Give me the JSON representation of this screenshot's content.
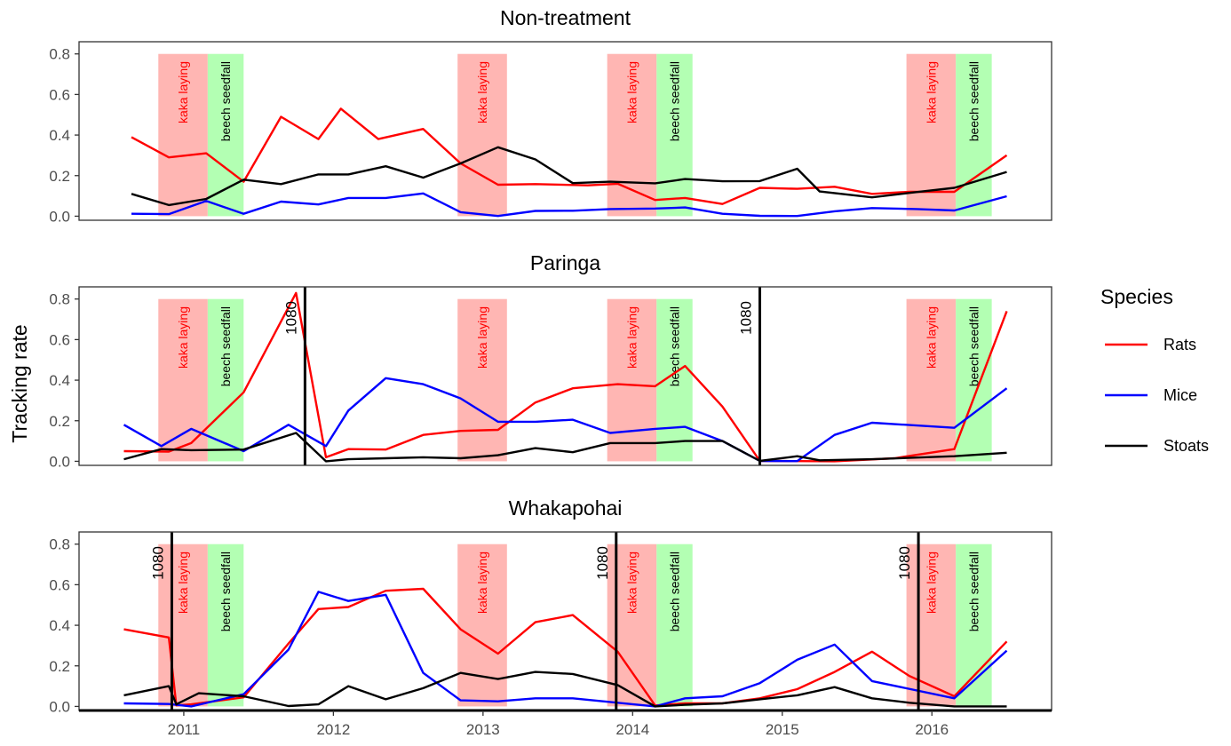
{
  "chart_data": {
    "type": "line",
    "ylabel": "Tracking rate",
    "x_ticks": [
      2011,
      2012,
      2013,
      2014,
      2015,
      2016
    ],
    "xlim": [
      2010.3,
      2016.8
    ],
    "ylim": [
      -0.02,
      0.86
    ],
    "y_ticks": [
      "0.0",
      "0.2",
      "0.4",
      "0.6",
      "0.8"
    ],
    "grid": false,
    "legend": {
      "title": "Species",
      "position": "right",
      "entries": [
        {
          "name": "Rats",
          "color": "#ff0000"
        },
        {
          "name": "Mice",
          "color": "#0000ff"
        },
        {
          "name": "Stoats",
          "color": "#000000"
        }
      ]
    },
    "colors": {
      "Rats": "#ff0000",
      "Mice": "#0000ff",
      "Stoats": "#000000",
      "kaka_band": "#ffb6b3",
      "beech_band": "#b3ffb3",
      "kaka_text": "#ff0000",
      "beech_text": "#000000"
    },
    "band_labels": {
      "kaka": "kaka laying",
      "beech": "beech seedfall"
    },
    "event_label": "1080",
    "panels": [
      {
        "title": "Non-treatment",
        "bands": [
          {
            "type": "kaka",
            "start": 2010.83,
            "end": 2011.16
          },
          {
            "type": "beech",
            "start": 2011.16,
            "end": 2011.4
          },
          {
            "type": "kaka",
            "start": 2012.83,
            "end": 2013.16
          },
          {
            "type": "kaka",
            "start": 2013.83,
            "end": 2014.16
          },
          {
            "type": "beech",
            "start": 2014.16,
            "end": 2014.4
          },
          {
            "type": "kaka",
            "start": 2015.83,
            "end": 2016.16
          },
          {
            "type": "beech",
            "start": 2016.16,
            "end": 2016.4
          }
        ],
        "events": [],
        "series": [
          {
            "name": "Rats",
            "x": [
              2010.65,
              2010.9,
              2011.15,
              2011.4,
              2011.65,
              2011.9,
              2012.05,
              2012.3,
              2012.6,
              2012.85,
              2013.1,
              2013.35,
              2013.7,
              2013.9,
              2014.15,
              2014.35,
              2014.6,
              2014.85,
              2015.1,
              2015.35,
              2015.6,
              2015.85,
              2016.15,
              2016.5
            ],
            "values": [
              0.39,
              0.29,
              0.31,
              0.17,
              0.49,
              0.38,
              0.53,
              0.38,
              0.43,
              0.26,
              0.155,
              0.158,
              0.152,
              0.16,
              0.08,
              0.09,
              0.06,
              0.14,
              0.135,
              0.145,
              0.11,
              0.12,
              0.12,
              0.3
            ]
          },
          {
            "name": "Mice",
            "x": [
              2010.65,
              2010.9,
              2011.15,
              2011.4,
              2011.65,
              2011.9,
              2012.1,
              2012.35,
              2012.6,
              2012.85,
              2013.1,
              2013.35,
              2013.6,
              2013.85,
              2014.15,
              2014.35,
              2014.6,
              2014.85,
              2015.1,
              2015.35,
              2015.6,
              2015.9,
              2016.15,
              2016.5
            ],
            "values": [
              0.012,
              0.01,
              0.075,
              0.012,
              0.072,
              0.058,
              0.09,
              0.09,
              0.112,
              0.02,
              0.001,
              0.026,
              0.027,
              0.035,
              0.038,
              0.043,
              0.012,
              0.002,
              0.001,
              0.024,
              0.04,
              0.035,
              0.028,
              0.098
            ]
          },
          {
            "name": "Stoats",
            "x": [
              2010.65,
              2010.9,
              2011.15,
              2011.4,
              2011.65,
              2011.9,
              2012.1,
              2012.35,
              2012.6,
              2012.85,
              2013.1,
              2013.35,
              2013.6,
              2013.85,
              2014.15,
              2014.35,
              2014.6,
              2014.85,
              2015.1,
              2015.25,
              2015.6,
              2015.85,
              2016.15,
              2016.5
            ],
            "values": [
              0.11,
              0.055,
              0.085,
              0.18,
              0.158,
              0.206,
              0.206,
              0.246,
              0.19,
              0.26,
              0.34,
              0.28,
              0.163,
              0.17,
              0.162,
              0.183,
              0.172,
              0.173,
              0.234,
              0.122,
              0.093,
              0.115,
              0.14,
              0.218
            ]
          }
        ]
      },
      {
        "title": "Paringa",
        "bands": [
          {
            "type": "kaka",
            "start": 2010.83,
            "end": 2011.16
          },
          {
            "type": "beech",
            "start": 2011.16,
            "end": 2011.4
          },
          {
            "type": "kaka",
            "start": 2012.83,
            "end": 2013.16
          },
          {
            "type": "kaka",
            "start": 2013.83,
            "end": 2014.16
          },
          {
            "type": "beech",
            "start": 2014.16,
            "end": 2014.4
          },
          {
            "type": "kaka",
            "start": 2015.83,
            "end": 2016.16
          },
          {
            "type": "beech",
            "start": 2016.16,
            "end": 2016.4
          }
        ],
        "events": [
          2011.81,
          2014.85
        ],
        "series": [
          {
            "name": "Rats",
            "x": [
              2010.6,
              2010.9,
              2011.05,
              2011.4,
              2011.75,
              2011.95,
              2012.1,
              2012.35,
              2012.6,
              2012.85,
              2013.1,
              2013.35,
              2013.6,
              2013.9,
              2014.15,
              2014.35,
              2014.6,
              2014.85,
              2015.1,
              2015.35,
              2015.75,
              2016.15,
              2016.5
            ],
            "values": [
              0.05,
              0.048,
              0.09,
              0.34,
              0.83,
              0.02,
              0.06,
              0.058,
              0.13,
              0.15,
              0.155,
              0.29,
              0.36,
              0.38,
              0.37,
              0.47,
              0.27,
              0.002,
              0.001,
              0.0,
              0.015,
              0.06,
              0.74
            ]
          },
          {
            "name": "Mice",
            "x": [
              2010.6,
              2010.85,
              2011.05,
              2011.4,
              2011.7,
              2011.95,
              2012.1,
              2012.35,
              2012.6,
              2012.85,
              2013.1,
              2013.35,
              2013.6,
              2013.85,
              2014.15,
              2014.35,
              2014.6,
              2014.85,
              2015.1,
              2015.35,
              2015.6,
              2016.15,
              2016.5
            ],
            "values": [
              0.18,
              0.075,
              0.16,
              0.05,
              0.18,
              0.075,
              0.25,
              0.41,
              0.38,
              0.31,
              0.195,
              0.195,
              0.205,
              0.14,
              0.16,
              0.17,
              0.1,
              0.002,
              0.001,
              0.13,
              0.19,
              0.165,
              0.36
            ]
          },
          {
            "name": "Stoats",
            "x": [
              2010.6,
              2010.85,
              2011.05,
              2011.4,
              2011.75,
              2011.95,
              2012.1,
              2012.35,
              2012.6,
              2012.85,
              2013.1,
              2013.35,
              2013.6,
              2013.85,
              2014.15,
              2014.35,
              2014.6,
              2014.85,
              2015.1,
              2015.25,
              2015.6,
              2016.15,
              2016.5
            ],
            "values": [
              0.01,
              0.06,
              0.055,
              0.058,
              0.14,
              0.0,
              0.01,
              0.015,
              0.02,
              0.015,
              0.03,
              0.065,
              0.045,
              0.09,
              0.09,
              0.1,
              0.1,
              0.002,
              0.025,
              0.005,
              0.01,
              0.025,
              0.042
            ]
          }
        ]
      },
      {
        "title": "Whakapohai",
        "bands": [
          {
            "type": "kaka",
            "start": 2010.83,
            "end": 2011.16
          },
          {
            "type": "beech",
            "start": 2011.16,
            "end": 2011.4
          },
          {
            "type": "kaka",
            "start": 2012.83,
            "end": 2013.16
          },
          {
            "type": "kaka",
            "start": 2013.83,
            "end": 2014.16
          },
          {
            "type": "beech",
            "start": 2014.16,
            "end": 2014.4
          },
          {
            "type": "kaka",
            "start": 2015.83,
            "end": 2016.16
          },
          {
            "type": "beech",
            "start": 2016.16,
            "end": 2016.4
          }
        ],
        "events": [
          2010.92,
          2013.89,
          2015.91
        ],
        "series": [
          {
            "name": "Rats",
            "x": [
              2010.6,
              2010.9,
              2010.95,
              2011.05,
              2011.4,
              2011.7,
              2011.9,
              2012.1,
              2012.35,
              2012.6,
              2012.85,
              2013.1,
              2013.35,
              2013.6,
              2013.9,
              2014.15,
              2014.35,
              2014.6,
              2014.85,
              2015.1,
              2015.35,
              2015.6,
              2015.85,
              2016.15,
              2016.5
            ],
            "values": [
              0.38,
              0.34,
              0.005,
              0.01,
              0.045,
              0.31,
              0.48,
              0.49,
              0.57,
              0.58,
              0.38,
              0.26,
              0.415,
              0.45,
              0.27,
              0.005,
              0.015,
              0.015,
              0.04,
              0.085,
              0.17,
              0.27,
              0.15,
              0.05,
              0.32
            ]
          },
          {
            "name": "Mice",
            "x": [
              2010.6,
              2010.9,
              2011.05,
              2011.4,
              2011.7,
              2011.9,
              2012.1,
              2012.35,
              2012.6,
              2012.85,
              2013.1,
              2013.35,
              2013.6,
              2013.9,
              2014.15,
              2014.35,
              2014.6,
              2014.85,
              2015.1,
              2015.35,
              2015.6,
              2016.15,
              2016.5
            ],
            "values": [
              0.015,
              0.012,
              0.0,
              0.06,
              0.28,
              0.565,
              0.52,
              0.55,
              0.165,
              0.03,
              0.025,
              0.04,
              0.04,
              0.018,
              0.0,
              0.04,
              0.05,
              0.115,
              0.23,
              0.305,
              0.125,
              0.04,
              0.275
            ]
          },
          {
            "name": "Stoats",
            "x": [
              2010.6,
              2010.9,
              2010.95,
              2011.1,
              2011.4,
              2011.7,
              2011.9,
              2012.1,
              2012.35,
              2012.6,
              2012.85,
              2013.1,
              2013.35,
              2013.6,
              2013.9,
              2014.15,
              2014.35,
              2014.6,
              2014.85,
              2015.1,
              2015.35,
              2015.6,
              2015.85,
              2016.15,
              2016.5
            ],
            "values": [
              0.055,
              0.1,
              0.01,
              0.065,
              0.05,
              0.002,
              0.01,
              0.1,
              0.035,
              0.09,
              0.165,
              0.135,
              0.17,
              0.16,
              0.105,
              0.0,
              0.008,
              0.015,
              0.035,
              0.055,
              0.095,
              0.04,
              0.018,
              0.0,
              0.0
            ]
          }
        ]
      }
    ]
  }
}
